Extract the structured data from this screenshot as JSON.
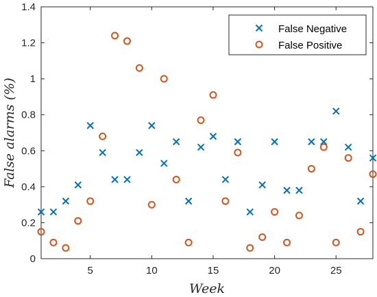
{
  "chart_data": {
    "type": "scatter",
    "xlabel": "Week",
    "ylabel": "False alarms (%)",
    "xlim": [
      1,
      28
    ],
    "ylim": [
      0,
      1.4
    ],
    "x_ticks": [
      5,
      10,
      15,
      20,
      25
    ],
    "x_tick_labels": [
      "5",
      "10",
      "15",
      "20",
      "25"
    ],
    "y_ticks": [
      0,
      0.2,
      0.4,
      0.6,
      0.8,
      1.0,
      1.2,
      1.4
    ],
    "y_tick_labels": [
      "0",
      "0.2",
      "0.4",
      "0.6",
      "0.8",
      "1",
      "1.2",
      "1.4"
    ],
    "grid": false,
    "legend_position": "top-right",
    "series": [
      {
        "name": "False Negative",
        "marker": "x",
        "color": "#0072BD",
        "x": [
          1,
          2,
          3,
          4,
          5,
          6,
          7,
          8,
          9,
          10,
          11,
          12,
          13,
          14,
          15,
          16,
          17,
          18,
          19,
          20,
          21,
          22,
          23,
          24,
          25,
          26,
          27,
          28
        ],
        "y": [
          0.26,
          0.26,
          0.32,
          0.41,
          0.74,
          0.59,
          0.44,
          0.44,
          0.59,
          0.74,
          0.53,
          0.65,
          0.32,
          0.62,
          0.68,
          0.44,
          0.65,
          0.26,
          0.41,
          0.65,
          0.38,
          0.38,
          0.65,
          0.65,
          0.82,
          0.62,
          0.32,
          0.56
        ]
      },
      {
        "name": "False Positive",
        "marker": "o",
        "color": "#D95319",
        "x": [
          1,
          2,
          3,
          4,
          5,
          6,
          7,
          8,
          9,
          10,
          11,
          12,
          13,
          14,
          15,
          16,
          17,
          18,
          19,
          20,
          21,
          22,
          23,
          24,
          25,
          26,
          27,
          28
        ],
        "y": [
          0.15,
          0.09,
          0.06,
          0.21,
          0.32,
          0.68,
          1.24,
          1.21,
          1.06,
          0.3,
          1.0,
          0.44,
          0.09,
          0.77,
          0.91,
          0.32,
          0.59,
          0.06,
          0.12,
          0.26,
          0.09,
          0.24,
          0.5,
          0.62,
          0.09,
          0.56,
          0.15,
          0.47
        ]
      }
    ]
  }
}
